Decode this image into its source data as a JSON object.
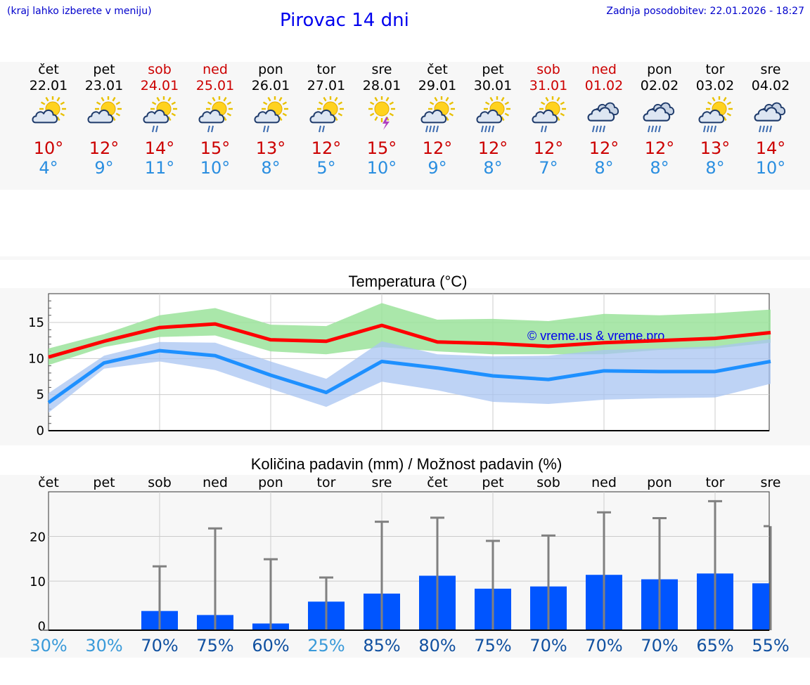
{
  "header": {
    "hint": "(kraj lahko izberete v meniju)",
    "title": "Pirovac 14 dni",
    "updated": "Zadnja posodobitev: 22.01.2026 - 18:27"
  },
  "days": [
    {
      "name": "čet",
      "date": "22.01",
      "weekend": false,
      "icon": "partly-cloudy-icon",
      "max": "10°",
      "min": "4°"
    },
    {
      "name": "pet",
      "date": "23.01",
      "weekend": false,
      "icon": "partly-cloudy-icon",
      "max": "12°",
      "min": "9°"
    },
    {
      "name": "sob",
      "date": "24.01",
      "weekend": true,
      "icon": "partly-cloudy-rain-icon",
      "max": "14°",
      "min": "11°"
    },
    {
      "name": "ned",
      "date": "25.01",
      "weekend": true,
      "icon": "partly-cloudy-rain-icon",
      "max": "15°",
      "min": "10°"
    },
    {
      "name": "pon",
      "date": "26.01",
      "weekend": false,
      "icon": "partly-cloudy-rain-icon",
      "max": "13°",
      "min": "8°"
    },
    {
      "name": "tor",
      "date": "27.01",
      "weekend": false,
      "icon": "partly-cloudy-rain-icon",
      "max": "12°",
      "min": "5°"
    },
    {
      "name": "sre",
      "date": "28.01",
      "weekend": false,
      "icon": "sun-thunder-icon",
      "max": "15°",
      "min": "10°"
    },
    {
      "name": "čet",
      "date": "29.01",
      "weekend": false,
      "icon": "partly-cloudy-heavy-rain-icon",
      "max": "12°",
      "min": "9°"
    },
    {
      "name": "pet",
      "date": "30.01",
      "weekend": false,
      "icon": "partly-cloudy-heavy-rain-icon",
      "max": "12°",
      "min": "8°"
    },
    {
      "name": "sob",
      "date": "31.01",
      "weekend": true,
      "icon": "partly-cloudy-rain-icon",
      "max": "12°",
      "min": "7°"
    },
    {
      "name": "ned",
      "date": "01.02",
      "weekend": true,
      "icon": "cloudy-rain-icon",
      "max": "12°",
      "min": "8°"
    },
    {
      "name": "pon",
      "date": "02.02",
      "weekend": false,
      "icon": "cloudy-rain-icon",
      "max": "12°",
      "min": "8°"
    },
    {
      "name": "tor",
      "date": "03.02",
      "weekend": false,
      "icon": "partly-cloudy-heavy-rain-icon",
      "max": "13°",
      "min": "8°"
    },
    {
      "name": "sre",
      "date": "04.02",
      "weekend": false,
      "icon": "cloudy-rain-icon",
      "max": "14°",
      "min": "10°"
    }
  ],
  "colors": {
    "weekend": "#cc0000",
    "max_line": "#ff0000",
    "min_line": "#1e90ff",
    "max_band": "#9be39b",
    "min_band": "#a8c4f2",
    "bar": "#0055ff",
    "errorbar": "#808080",
    "pct_low": "#3a9ad9",
    "pct_high": "#1050a0"
  },
  "chart_data": [
    {
      "type": "line",
      "title": "Temperatura (°C)",
      "watermark": "© vreme.us & vreme.pro",
      "ylim": [
        0,
        19
      ],
      "yticks": [
        0,
        5,
        10,
        15
      ],
      "x": [
        0,
        1,
        2,
        3,
        4,
        5,
        6,
        7,
        8,
        9,
        10,
        11,
        12,
        13
      ],
      "series": [
        {
          "name": "max",
          "values": [
            10.2,
            12.4,
            14.3,
            14.8,
            12.6,
            12.4,
            14.6,
            12.3,
            12.1,
            11.7,
            12.2,
            12.5,
            12.8,
            13.6
          ]
        },
        {
          "name": "min",
          "values": [
            3.9,
            9.4,
            11.1,
            10.4,
            7.7,
            5.3,
            9.6,
            8.7,
            7.6,
            7.1,
            8.3,
            8.2,
            8.2,
            9.6
          ]
        }
      ],
      "bands": [
        {
          "name": "max_range",
          "low": [
            9.1,
            11.6,
            13.0,
            13.2,
            11.0,
            10.6,
            11.6,
            11.0,
            10.6,
            10.6,
            10.6,
            11.2,
            11.4,
            12.2
          ],
          "high": [
            11.4,
            13.4,
            16.0,
            17.0,
            14.7,
            14.5,
            17.7,
            15.4,
            15.5,
            15.2,
            16.2,
            16.0,
            16.3,
            16.8
          ]
        },
        {
          "name": "min_range",
          "low": [
            2.5,
            8.6,
            9.6,
            8.4,
            5.8,
            3.3,
            6.8,
            5.6,
            4.0,
            3.7,
            4.3,
            4.5,
            4.6,
            6.5
          ],
          "high": [
            5.2,
            10.4,
            12.3,
            12.2,
            9.6,
            7.2,
            12.4,
            10.6,
            10.3,
            10.4,
            11.2,
            11.4,
            11.7,
            12.7
          ]
        }
      ]
    },
    {
      "type": "bar",
      "title": "Količina padavin (mm) / Možnost padavin (%)",
      "ylim": [
        -1,
        30
      ],
      "yticks": [
        0,
        10,
        20
      ],
      "categories": [
        "čet",
        "pet",
        "sob",
        "ned",
        "pon",
        "tor",
        "sre",
        "čet",
        "pet",
        "sob",
        "ned",
        "pon",
        "tor",
        "sre"
      ],
      "values": [
        0,
        0,
        3.3,
        2.4,
        0.5,
        5.4,
        7.2,
        11.2,
        8.3,
        8.8,
        11.4,
        10.4,
        11.7,
        9.5
      ],
      "error_high": [
        0,
        0,
        13.3,
        21.8,
        14.9,
        10.8,
        23.3,
        24.2,
        19.0,
        20.2,
        25.4,
        24.1,
        27.9,
        22.3
      ],
      "probability": [
        "30%",
        "30%",
        "70%",
        "75%",
        "60%",
        "25%",
        "85%",
        "80%",
        "75%",
        "70%",
        "70%",
        "70%",
        "65%",
        "55%"
      ]
    }
  ]
}
